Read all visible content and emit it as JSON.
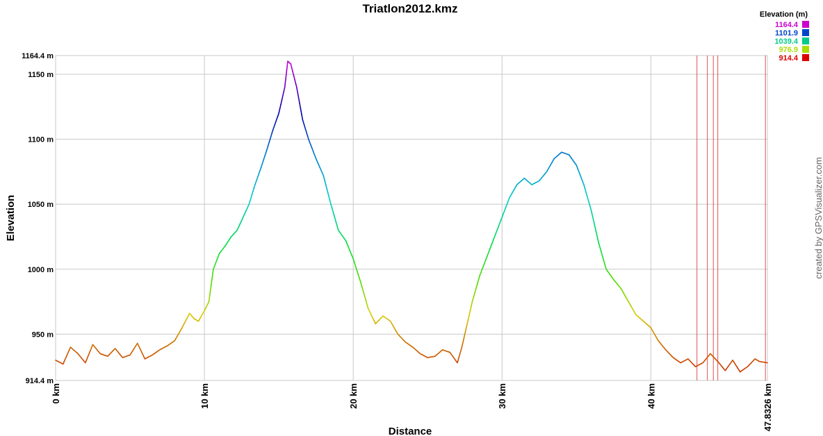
{
  "chart_data": {
    "type": "line",
    "title": "Triatlon2012.kmz",
    "xlabel": "Distance",
    "ylabel": "Elevation",
    "xlim": [
      0,
      47.8326
    ],
    "ylim": [
      914.4,
      1164.4
    ],
    "x_ticks": [
      0,
      10,
      20,
      30,
      40,
      47.8326
    ],
    "x_tick_labels": [
      "0 km",
      "10 km",
      "20 km",
      "30 km",
      "40 km",
      "47.8326 km"
    ],
    "y_ticks": [
      914.4,
      950,
      1000,
      1050,
      1100,
      1150,
      1164.4
    ],
    "y_tick_labels": [
      "914.4 m",
      "950 m",
      "1000 m",
      "1050 m",
      "1100 m",
      "1150 m",
      "1164.4 m"
    ],
    "grid": true,
    "series": [
      {
        "x": [
          0,
          0.5,
          1,
          1.5,
          2,
          2.5,
          3,
          3.5,
          4,
          4.5,
          5,
          5.5,
          6,
          6.5,
          7,
          7.5,
          8,
          8.5,
          9,
          9.3,
          9.6,
          10,
          10.3,
          10.6,
          11,
          11.4,
          11.8,
          12.2,
          12.6,
          13,
          13.4,
          13.8,
          14.2,
          14.6,
          15,
          15.4,
          15.6,
          15.8,
          16.2,
          16.6,
          17,
          17.5,
          18,
          18.5,
          19,
          19.5,
          20,
          20.5,
          21,
          21.5,
          22,
          22.5,
          23,
          23.5,
          24,
          24.5,
          25,
          25.5,
          26,
          26.5,
          27,
          27.3,
          27.6,
          28,
          28.5,
          29,
          29.5,
          30,
          30.5,
          31,
          31.5,
          32,
          32.5,
          33,
          33.5,
          34,
          34.5,
          35,
          35.5,
          36,
          36.5,
          37,
          37.5,
          38,
          38.5,
          39,
          39.5,
          40,
          40.5,
          41,
          41.5,
          42,
          42.5,
          43,
          43.5,
          44,
          44.5,
          45,
          45.5,
          46,
          46.5,
          47,
          47.3,
          47.8326
        ],
        "y": [
          930,
          927,
          940,
          935,
          928,
          942,
          935,
          933,
          939,
          932,
          934,
          943,
          931,
          934,
          938,
          941,
          945,
          955,
          966,
          962,
          960,
          968,
          975,
          1000,
          1012,
          1018,
          1025,
          1030,
          1040,
          1050,
          1065,
          1078,
          1092,
          1107,
          1120,
          1140,
          1160,
          1158,
          1140,
          1115,
          1100,
          1085,
          1072,
          1050,
          1030,
          1022,
          1008,
          990,
          970,
          958,
          964,
          960,
          950,
          944,
          940,
          935,
          932,
          933,
          938,
          936,
          928,
          940,
          955,
          975,
          995,
          1010,
          1025,
          1040,
          1055,
          1065,
          1070,
          1065,
          1068,
          1075,
          1085,
          1090,
          1088,
          1080,
          1065,
          1045,
          1020,
          1000,
          992,
          985,
          975,
          965,
          960,
          955,
          945,
          938,
          932,
          928,
          931,
          925,
          928,
          935,
          929,
          922,
          930,
          921,
          925,
          931,
          929,
          928
        ]
      }
    ],
    "markers_x": [
      43.1,
      43.8,
      44.2,
      44.5,
      47.7
    ],
    "marker_color": "#e05050",
    "legend": {
      "title": "Elevation (m)",
      "placement": "top-right",
      "entries": [
        {
          "label": "1164.4",
          "color": "#cc00cc"
        },
        {
          "label": "1101.9",
          "color": "#0044cc"
        },
        {
          "label": "1039.4",
          "color": "#00cc88"
        },
        {
          "label": "976.9",
          "color": "#aadd00"
        },
        {
          "label": "914.4",
          "color": "#dd0000"
        }
      ]
    },
    "color_scale": [
      {
        "value": 914.4,
        "color": "#cc2200"
      },
      {
        "value": 945,
        "color": "#cc7700"
      },
      {
        "value": 965,
        "color": "#d8cc00"
      },
      {
        "value": 990,
        "color": "#55dd00"
      },
      {
        "value": 1020,
        "color": "#00dd44"
      },
      {
        "value": 1055,
        "color": "#00cccc"
      },
      {
        "value": 1090,
        "color": "#0077cc"
      },
      {
        "value": 1120,
        "color": "#0000aa"
      },
      {
        "value": 1164.4,
        "color": "#dd00dd"
      }
    ]
  },
  "credit": "created by GPSVisualizer.com"
}
